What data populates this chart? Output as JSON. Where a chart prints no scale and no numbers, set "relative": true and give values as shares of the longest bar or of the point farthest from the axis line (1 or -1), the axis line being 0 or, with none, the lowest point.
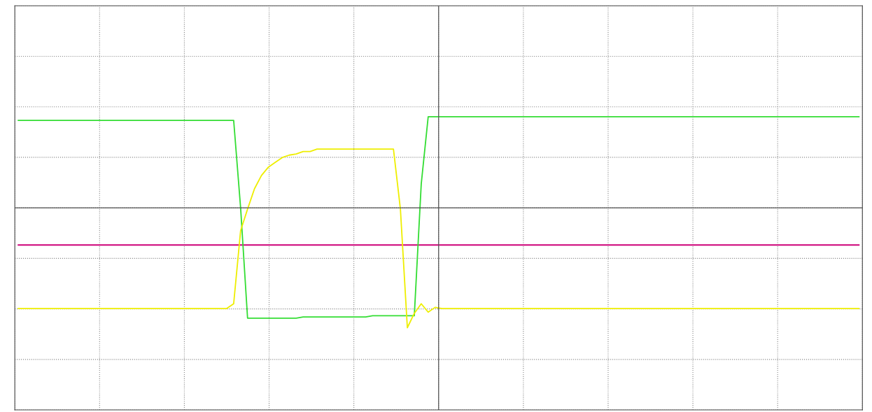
{
  "chart_data": {
    "type": "line",
    "relative": true,
    "grid": true,
    "line_style": "solid",
    "marker": "none",
    "categories": [
      null,
      null,
      null,
      null,
      null,
      null,
      null,
      null,
      null,
      null,
      null,
      null,
      null,
      null,
      null,
      null,
      null,
      null,
      null,
      null,
      null,
      null,
      null,
      null,
      null,
      null,
      null,
      null,
      null,
      null,
      null,
      null,
      null,
      null,
      null,
      null,
      null,
      null,
      null,
      null,
      null,
      null,
      null,
      null,
      null,
      null,
      null,
      null,
      null,
      null,
      null,
      null,
      null,
      null,
      null,
      null,
      null,
      null,
      null,
      null,
      null,
      null,
      null,
      null,
      null,
      null,
      null,
      null,
      null,
      null,
      null,
      null,
      null,
      null,
      null,
      null,
      null,
      null,
      null,
      null,
      null,
      null,
      null,
      null,
      null,
      null,
      null,
      null,
      null,
      null,
      null,
      null,
      null,
      null,
      null,
      null,
      null,
      null,
      null,
      null,
      null,
      null,
      null,
      null,
      null,
      null,
      null,
      null,
      null,
      null,
      null,
      null,
      null,
      null,
      null,
      null,
      null,
      null,
      null,
      null,
      null,
      null
    ],
    "series": [
      {
        "color": "#cc0077",
        "values": [
          -0.31,
          -0.31,
          -0.31,
          -0.31,
          -0.31,
          -0.31,
          -0.31,
          -0.31,
          -0.31,
          -0.31,
          -0.31,
          -0.31,
          -0.31,
          -0.31,
          -0.31,
          -0.31,
          -0.31,
          -0.31,
          -0.31,
          -0.31,
          -0.31,
          -0.31,
          -0.31,
          -0.31,
          -0.31,
          -0.31,
          -0.31,
          -0.31,
          -0.31,
          -0.31,
          -0.31,
          -0.31,
          -0.31,
          -0.31,
          -0.31,
          -0.31,
          -0.31,
          -0.31,
          -0.31,
          -0.31,
          -0.31,
          -0.31,
          -0.31,
          -0.31,
          -0.31,
          -0.31,
          -0.31,
          -0.31,
          -0.31,
          -0.31,
          -0.31,
          -0.31,
          -0.31,
          -0.31,
          -0.31,
          -0.31,
          -0.31,
          -0.31,
          -0.31,
          -0.31,
          -0.31,
          -0.31,
          -0.31,
          -0.31,
          -0.31,
          -0.31,
          -0.31,
          -0.31,
          -0.31,
          -0.31,
          -0.31,
          -0.31,
          -0.31,
          -0.31,
          -0.31,
          -0.31,
          -0.31,
          -0.31,
          -0.31,
          -0.31,
          -0.31,
          -0.31,
          -0.31,
          -0.31,
          -0.31,
          -0.31,
          -0.31,
          -0.31,
          -0.31,
          -0.31,
          -0.31,
          -0.31,
          -0.31,
          -0.31,
          -0.31,
          -0.31,
          -0.31,
          -0.31,
          -0.31,
          -0.31,
          -0.31,
          -0.31,
          -0.31,
          -0.31,
          -0.31,
          -0.31,
          -0.31,
          -0.31,
          -0.31,
          -0.31,
          -0.31,
          -0.31,
          -0.31,
          -0.31,
          -0.31,
          -0.31,
          -0.31,
          -0.31,
          -0.31,
          -0.31,
          -0.31,
          -0.31
        ]
      },
      {
        "color": "#33dd33",
        "values": [
          0.73,
          0.73,
          0.73,
          0.73,
          0.73,
          0.73,
          0.73,
          0.73,
          0.73,
          0.73,
          0.73,
          0.73,
          0.73,
          0.73,
          0.73,
          0.73,
          0.73,
          0.73,
          0.73,
          0.73,
          0.73,
          0.73,
          0.73,
          0.73,
          0.73,
          0.73,
          0.73,
          0.73,
          0.73,
          0.73,
          0.73,
          0.73,
          0.0,
          -0.92,
          -0.92,
          -0.92,
          -0.92,
          -0.92,
          -0.92,
          -0.92,
          -0.92,
          -0.91,
          -0.91,
          -0.91,
          -0.91,
          -0.91,
          -0.91,
          -0.91,
          -0.91,
          -0.91,
          -0.91,
          -0.9,
          -0.9,
          -0.9,
          -0.9,
          -0.9,
          -0.9,
          -0.9,
          0.2,
          0.76,
          0.76,
          0.76,
          0.76,
          0.76,
          0.76,
          0.76,
          0.76,
          0.76,
          0.76,
          0.76,
          0.76,
          0.76,
          0.76,
          0.76,
          0.76,
          0.76,
          0.76,
          0.76,
          0.76,
          0.76,
          0.76,
          0.76,
          0.76,
          0.76,
          0.76,
          0.76,
          0.76,
          0.76,
          0.76,
          0.76,
          0.76,
          0.76,
          0.76,
          0.76,
          0.76,
          0.76,
          0.76,
          0.76,
          0.76,
          0.76,
          0.76,
          0.76,
          0.76,
          0.76,
          0.76,
          0.76,
          0.76,
          0.76,
          0.76,
          0.76,
          0.76,
          0.76,
          0.76,
          0.76,
          0.76,
          0.76,
          0.76,
          0.76,
          0.76,
          0.76,
          0.76,
          0.76
        ]
      },
      {
        "color": "#eeee00",
        "values": [
          -0.84,
          -0.84,
          -0.84,
          -0.84,
          -0.84,
          -0.84,
          -0.84,
          -0.84,
          -0.84,
          -0.84,
          -0.84,
          -0.84,
          -0.84,
          -0.84,
          -0.84,
          -0.84,
          -0.84,
          -0.84,
          -0.84,
          -0.84,
          -0.84,
          -0.84,
          -0.84,
          -0.84,
          -0.84,
          -0.84,
          -0.84,
          -0.84,
          -0.84,
          -0.84,
          -0.84,
          -0.8,
          -0.19,
          -0.01,
          0.16,
          0.27,
          0.34,
          0.38,
          0.42,
          0.44,
          0.45,
          0.47,
          0.47,
          0.49,
          0.49,
          0.49,
          0.49,
          0.49,
          0.49,
          0.49,
          0.49,
          0.49,
          0.49,
          0.49,
          0.49,
          -0.01,
          -1,
          -0.88,
          -0.8,
          -0.87,
          -0.83,
          -0.84,
          -0.84,
          -0.84,
          -0.84,
          -0.84,
          -0.84,
          -0.84,
          -0.84,
          -0.84,
          -0.84,
          -0.84,
          -0.84,
          -0.84,
          -0.84,
          -0.84,
          -0.84,
          -0.84,
          -0.84,
          -0.84,
          -0.84,
          -0.84,
          -0.84,
          -0.84,
          -0.84,
          -0.84,
          -0.84,
          -0.84,
          -0.84,
          -0.84,
          -0.84,
          -0.84,
          -0.84,
          -0.84,
          -0.84,
          -0.84,
          -0.84,
          -0.84,
          -0.84,
          -0.84,
          -0.84,
          -0.84,
          -0.84,
          -0.84,
          -0.84,
          -0.84,
          -0.84,
          -0.84,
          -0.84,
          -0.84,
          -0.84,
          -0.84,
          -0.84,
          -0.84,
          -0.84,
          -0.84,
          -0.84,
          -0.84,
          -0.84,
          -0.84,
          -0.84,
          -0.84
        ]
      }
    ]
  }
}
